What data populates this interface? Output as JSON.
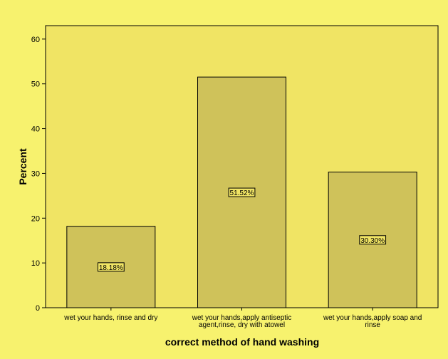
{
  "colors": {
    "page_bg": "#F7F26E",
    "plot_bg": "#F0E464",
    "bar_fill": "#CFC25A",
    "stroke": "#000000"
  },
  "chart_data": {
    "type": "bar",
    "categories": [
      [
        "wet your hands, rinse and dry"
      ],
      [
        "wet your hands,apply antiseptic",
        "agent,rinse, dry with atowel"
      ],
      [
        "wet your hands,apply soap and",
        "rinse"
      ]
    ],
    "values": [
      18.18,
      51.52,
      30.3
    ],
    "data_labels": [
      "18.18%",
      "51.52%",
      "30.30%"
    ],
    "xlabel": "correct method of hand washing",
    "ylabel": "Percent",
    "ylim": [
      0,
      63
    ],
    "yticks": [
      0,
      10,
      20,
      30,
      40,
      50,
      60
    ],
    "grid": false
  }
}
